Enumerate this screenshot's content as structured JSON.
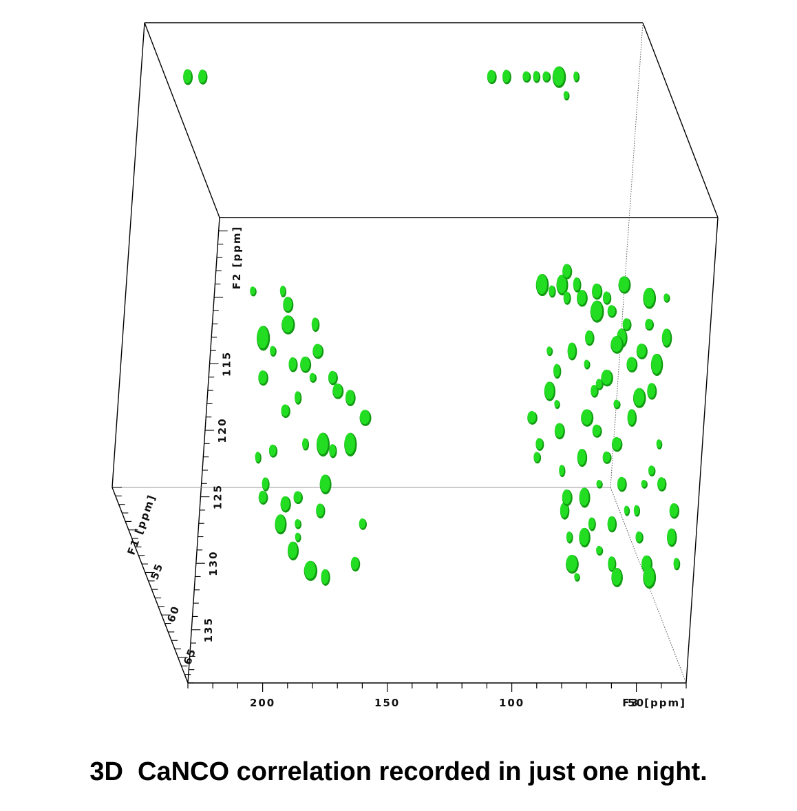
{
  "caption": "3D  CaNCO correlation recorded in just one night.",
  "chart_data": {
    "type": "scatter",
    "title": "3D  CaNCO correlation recorded in just one night.",
    "peak_color": "#22dd22",
    "peak_shade": "#119911",
    "axes": {
      "F3": {
        "label": "F3 [ppm]",
        "range": [
          230,
          30
        ],
        "ticks": [
          200,
          150,
          100,
          50
        ]
      },
      "F2": {
        "label": "F2 [ppm]",
        "range": [
          104,
          139
        ],
        "ticks": [
          115,
          120,
          125,
          130,
          135
        ]
      },
      "F1": {
        "label": "F1 [ppm]",
        "range": [
          45,
          68
        ],
        "ticks": [
          55,
          60,
          65
        ]
      }
    },
    "peaks_f3_f2": [
      [
        204,
        106
      ],
      [
        204,
        109.5
      ],
      [
        198,
        106
      ],
      [
        192,
        109.5
      ],
      [
        190,
        110.5
      ],
      [
        179,
        112
      ],
      [
        178,
        114
      ],
      [
        172,
        116
      ],
      [
        170,
        117
      ],
      [
        165,
        117.5
      ],
      [
        180,
        116
      ],
      [
        200,
        113
      ],
      [
        196,
        114
      ],
      [
        190,
        112
      ],
      [
        188,
        115
      ],
      [
        183,
        115
      ],
      [
        186,
        117.5
      ],
      [
        191,
        118.5
      ],
      [
        200,
        116
      ],
      [
        183,
        121
      ],
      [
        196,
        121.5
      ],
      [
        202,
        122
      ],
      [
        199,
        124
      ],
      [
        200,
        125
      ],
      [
        191,
        125.5
      ],
      [
        193,
        127
      ],
      [
        186,
        127
      ],
      [
        186,
        125
      ],
      [
        186,
        128
      ],
      [
        188,
        129
      ],
      [
        181,
        130.5
      ],
      [
        177,
        126
      ],
      [
        175,
        131
      ],
      [
        163,
        130
      ],
      [
        160,
        127
      ],
      [
        159,
        119
      ],
      [
        172,
        121.5
      ],
      [
        165,
        121
      ],
      [
        176,
        121
      ],
      [
        175,
        124
      ],
      [
        92,
        119
      ],
      [
        89,
        121
      ],
      [
        90,
        122
      ],
      [
        85,
        117
      ],
      [
        82,
        115.5
      ],
      [
        82,
        118
      ],
      [
        81,
        120
      ],
      [
        80,
        123
      ],
      [
        79,
        126
      ],
      [
        78,
        125
      ],
      [
        77,
        128
      ],
      [
        76,
        130
      ],
      [
        74,
        131
      ],
      [
        71,
        128
      ],
      [
        71,
        125
      ],
      [
        68,
        127
      ],
      [
        65,
        129
      ],
      [
        65,
        124
      ],
      [
        72,
        122
      ],
      [
        70,
        119
      ],
      [
        66,
        120
      ],
      [
        67,
        117
      ],
      [
        70,
        115
      ],
      [
        65,
        116.5
      ],
      [
        62,
        116
      ],
      [
        58,
        118
      ],
      [
        58,
        121
      ],
      [
        62,
        122
      ],
      [
        56,
        124
      ],
      [
        54,
        126
      ],
      [
        60,
        127
      ],
      [
        60,
        130
      ],
      [
        58,
        131
      ],
      [
        49,
        128
      ],
      [
        50,
        126
      ],
      [
        47,
        124
      ],
      [
        44,
        123
      ],
      [
        41,
        121
      ],
      [
        40,
        124
      ],
      [
        36,
        128
      ],
      [
        35,
        126
      ],
      [
        34,
        130
      ],
      [
        46,
        130
      ],
      [
        45,
        131
      ],
      [
        52,
        119
      ],
      [
        49,
        117.5
      ],
      [
        44,
        117
      ],
      [
        42,
        115
      ],
      [
        38,
        113
      ],
      [
        56,
        113
      ],
      [
        60,
        111
      ],
      [
        66,
        111
      ],
      [
        72,
        110
      ],
      [
        80,
        109
      ],
      [
        78,
        108
      ],
      [
        88,
        109
      ],
      [
        85,
        114
      ],
      [
        76,
        114
      ],
      [
        52,
        115
      ],
      [
        48,
        114
      ],
      [
        64,
        106
      ],
      [
        60,
        106
      ],
      [
        55,
        106
      ],
      [
        52,
        107
      ],
      [
        84,
        109.5
      ],
      [
        78,
        110
      ],
      [
        74,
        109
      ],
      [
        66,
        109.5
      ],
      [
        55,
        109
      ],
      [
        62,
        110
      ],
      [
        45,
        110
      ],
      [
        38,
        110
      ],
      [
        82,
        106
      ],
      [
        76,
        106
      ],
      [
        68,
        106
      ],
      [
        48,
        106
      ],
      [
        69,
        113
      ],
      [
        58,
        113.5
      ],
      [
        54,
        112
      ],
      [
        45,
        112
      ]
    ]
  }
}
